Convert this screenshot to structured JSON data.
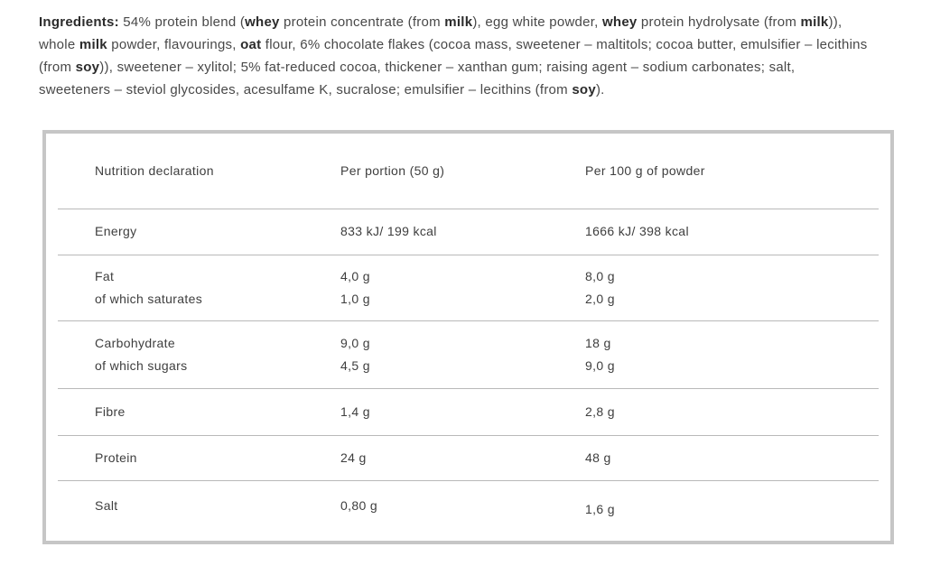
{
  "ingredients": {
    "lines": [
      [
        {
          "t": "Ingredients:",
          "b": true
        },
        {
          "t": " 54% protein blend (",
          "b": false
        },
        {
          "t": "whey",
          "b": true
        },
        {
          "t": " protein concentrate (from ",
          "b": false
        },
        {
          "t": "milk",
          "b": true
        },
        {
          "t": "), egg white powder, ",
          "b": false
        },
        {
          "t": "whey",
          "b": true
        },
        {
          "t": " protein hydrolysate (from ",
          "b": false
        },
        {
          "t": "milk",
          "b": true
        },
        {
          "t": ")),",
          "b": false
        }
      ],
      [
        {
          "t": "whole ",
          "b": false
        },
        {
          "t": "milk",
          "b": true
        },
        {
          "t": " powder, flavourings, ",
          "b": false
        },
        {
          "t": "oat",
          "b": true
        },
        {
          "t": " flour, 6% chocolate flakes (cocoa mass, sweetener – maltitols; cocoa butter, emulsifier – lecithins",
          "b": false
        }
      ],
      [
        {
          "t": "(from ",
          "b": false
        },
        {
          "t": "soy",
          "b": true
        },
        {
          "t": ")), sweetener – xylitol; 5% fat-reduced cocoa, thickener – xanthan gum; raising agent – sodium carbonates; salt,",
          "b": false
        }
      ],
      [
        {
          "t": "sweeteners – steviol glycosides, acesulfame K, sucralose; emulsifier – lecithins (from ",
          "b": false
        },
        {
          "t": "soy",
          "b": true
        },
        {
          "t": ").",
          "b": false
        }
      ]
    ]
  },
  "table": {
    "columns": [
      "Nutrition declaration",
      "Per portion (50 g)",
      "Per 100 g of powder"
    ],
    "groups": [
      {
        "rows": [
          {
            "label": "Energy",
            "per_portion": "833 kJ/ 199 kcal",
            "per_100g": "1666 kJ/ 398 kcal"
          }
        ]
      },
      {
        "rows": [
          {
            "label": "Fat",
            "per_portion": "4,0 g",
            "per_100g": "8,0 g"
          },
          {
            "label": "of which saturates",
            "per_portion": "1,0 g",
            "per_100g": "2,0 g"
          }
        ]
      },
      {
        "rows": [
          {
            "label": "Carbohydrate",
            "per_portion": "9,0 g",
            "per_100g": "18 g"
          },
          {
            "label": "of which sugars",
            "per_portion": "4,5 g",
            "per_100g": "9,0 g"
          }
        ]
      },
      {
        "rows": [
          {
            "label": "Fibre",
            "per_portion": "1,4 g",
            "per_100g": "2,8 g"
          }
        ]
      },
      {
        "rows": [
          {
            "label": "Protein",
            "per_portion": "24 g",
            "per_100g": "48 g"
          }
        ]
      },
      {
        "rows": [
          {
            "label": "Salt",
            "per_portion": "0,80 g",
            "per_100g": "1,6 g"
          }
        ]
      }
    ]
  }
}
